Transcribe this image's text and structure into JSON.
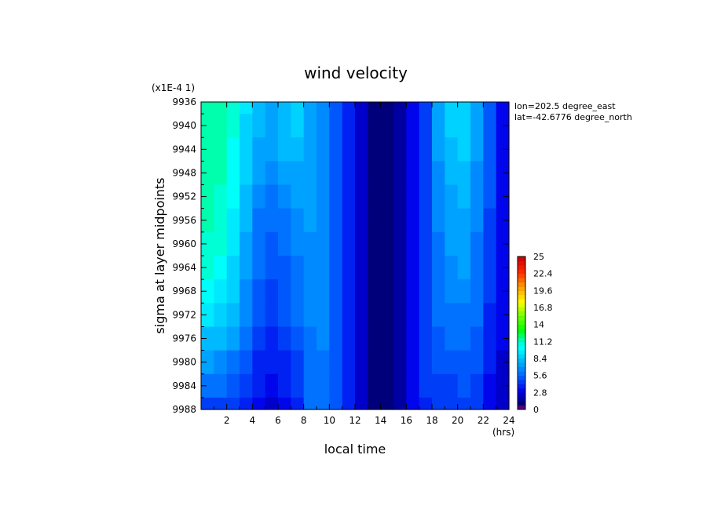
{
  "chart_data": {
    "type": "heatmap",
    "title": "wind velocity",
    "xlabel": "local time",
    "ylabel": "sigma at layer midpoints",
    "x_unit": "(hrs)",
    "y_scale_label": "(x1E-4 1)",
    "annotations": [
      "lon=202.5 degree_east",
      "lat=-42.6776 degree_north"
    ],
    "xlim": [
      0,
      24
    ],
    "ylim": [
      9936,
      9988
    ],
    "y_inverted": true,
    "x_ticks": [
      2,
      4,
      6,
      8,
      10,
      12,
      14,
      16,
      18,
      20,
      22,
      24
    ],
    "y_ticks": [
      9936,
      9940,
      9944,
      9948,
      9952,
      9956,
      9960,
      9964,
      9968,
      9972,
      9976,
      9980,
      9984,
      9988
    ],
    "colorbar": {
      "min": 0,
      "max": 25,
      "tick_labels": [
        "0",
        "2.8",
        "5.6",
        "8.4",
        "11.2",
        "14",
        "16.8",
        "19.6",
        "22.4",
        "25"
      ],
      "levels": 36
    },
    "x": [
      0.5,
      1.5,
      2.5,
      3.5,
      4.5,
      5.5,
      6.5,
      7.5,
      8.5,
      9.5,
      10.5,
      11.5,
      12.5,
      13.5,
      14.5,
      15.5,
      16.5,
      17.5,
      18.5,
      19.5,
      20.5,
      21.5,
      22.5,
      23.5
    ],
    "y": [
      9936,
      9940,
      9944,
      9948,
      9952,
      9956,
      9960,
      9964,
      9968,
      9972,
      9976,
      9980,
      9984,
      9988
    ],
    "z": [
      [
        11.8,
        11.5,
        10.5,
        9.2,
        8.2,
        7.6,
        8.0,
        8.4,
        7.6,
        6.4,
        5.0,
        3.6,
        2.2,
        1.0,
        0.8,
        2.0,
        3.2,
        4.6,
        7.2,
        8.4,
        8.6,
        7.4,
        5.2,
        3.4
      ],
      [
        11.8,
        11.5,
        10.5,
        9.0,
        7.8,
        7.4,
        8.0,
        8.4,
        7.6,
        6.4,
        5.0,
        3.6,
        2.2,
        1.0,
        0.8,
        2.0,
        3.2,
        4.6,
        7.2,
        8.4,
        8.6,
        7.2,
        5.2,
        3.4
      ],
      [
        11.7,
        11.4,
        10.4,
        8.8,
        7.5,
        7.0,
        7.8,
        8.2,
        7.6,
        6.4,
        5.0,
        3.6,
        2.2,
        1.0,
        0.8,
        2.0,
        3.2,
        4.6,
        7.0,
        8.2,
        8.4,
        7.0,
        5.2,
        3.4
      ],
      [
        11.6,
        11.2,
        10.2,
        8.6,
        7.0,
        6.6,
        7.2,
        7.6,
        7.4,
        6.4,
        5.0,
        3.6,
        2.2,
        1.0,
        0.8,
        2.0,
        3.2,
        4.6,
        6.8,
        7.9,
        8.0,
        6.8,
        5.0,
        3.4
      ],
      [
        11.4,
        11.0,
        10.0,
        8.2,
        6.6,
        6.0,
        6.4,
        7.0,
        7.2,
        6.4,
        5.0,
        3.6,
        2.2,
        1.0,
        0.8,
        2.0,
        3.2,
        4.6,
        6.6,
        7.6,
        7.8,
        6.6,
        5.0,
        3.4
      ],
      [
        11.2,
        10.8,
        9.7,
        7.9,
        6.2,
        5.6,
        6.0,
        6.6,
        7.0,
        6.4,
        5.0,
        3.6,
        2.2,
        1.0,
        0.8,
        2.0,
        3.2,
        4.6,
        6.4,
        7.4,
        7.6,
        6.4,
        4.8,
        3.4
      ],
      [
        11.0,
        10.5,
        9.4,
        7.6,
        5.9,
        5.2,
        5.8,
        6.4,
        6.8,
        6.4,
        5.0,
        3.6,
        2.2,
        1.0,
        0.8,
        2.0,
        3.2,
        4.6,
        6.2,
        7.2,
        7.4,
        6.2,
        4.6,
        3.4
      ],
      [
        10.6,
        10.1,
        9.0,
        7.2,
        5.6,
        4.9,
        5.5,
        6.2,
        6.6,
        6.4,
        5.0,
        3.6,
        2.2,
        1.0,
        0.8,
        2.0,
        3.2,
        4.6,
        6.0,
        6.9,
        7.0,
        6.0,
        4.4,
        3.3
      ],
      [
        10.0,
        9.5,
        8.5,
        6.8,
        5.3,
        4.6,
        5.2,
        5.9,
        6.4,
        6.4,
        5.0,
        3.6,
        2.2,
        1.0,
        0.8,
        2.0,
        3.2,
        4.6,
        5.8,
        6.6,
        6.6,
        5.8,
        4.2,
        3.2
      ],
      [
        9.2,
        8.8,
        7.9,
        6.4,
        4.9,
        4.3,
        4.9,
        5.6,
        6.3,
        6.3,
        5.0,
        3.6,
        2.2,
        1.0,
        0.8,
        2.0,
        3.2,
        4.6,
        5.6,
        6.2,
        6.2,
        5.6,
        4.0,
        3.0
      ],
      [
        8.2,
        8.0,
        7.2,
        5.9,
        4.5,
        3.9,
        4.5,
        5.2,
        6.2,
        6.3,
        5.0,
        3.6,
        2.2,
        1.0,
        0.8,
        2.0,
        3.2,
        4.6,
        5.4,
        5.8,
        5.8,
        5.4,
        3.8,
        2.8
      ],
      [
        7.0,
        6.8,
        6.2,
        5.2,
        4.0,
        3.5,
        4.0,
        4.8,
        6.0,
        6.2,
        5.0,
        3.6,
        2.2,
        1.0,
        0.8,
        2.0,
        3.2,
        4.6,
        5.0,
        5.3,
        5.4,
        5.0,
        3.6,
        2.6
      ],
      [
        5.8,
        5.6,
        5.2,
        4.4,
        3.5,
        3.0,
        3.5,
        4.4,
        5.8,
        6.1,
        5.0,
        3.6,
        2.2,
        1.0,
        0.8,
        2.0,
        3.2,
        4.2,
        4.6,
        4.8,
        5.0,
        4.6,
        3.4,
        2.4
      ],
      [
        4.8,
        4.6,
        4.4,
        3.8,
        3.0,
        2.4,
        3.0,
        4.0,
        5.6,
        6.0,
        5.0,
        3.6,
        2.2,
        1.0,
        0.8,
        2.0,
        3.2,
        3.6,
        4.2,
        4.6,
        4.8,
        4.2,
        3.2,
        2.2
      ]
    ]
  }
}
